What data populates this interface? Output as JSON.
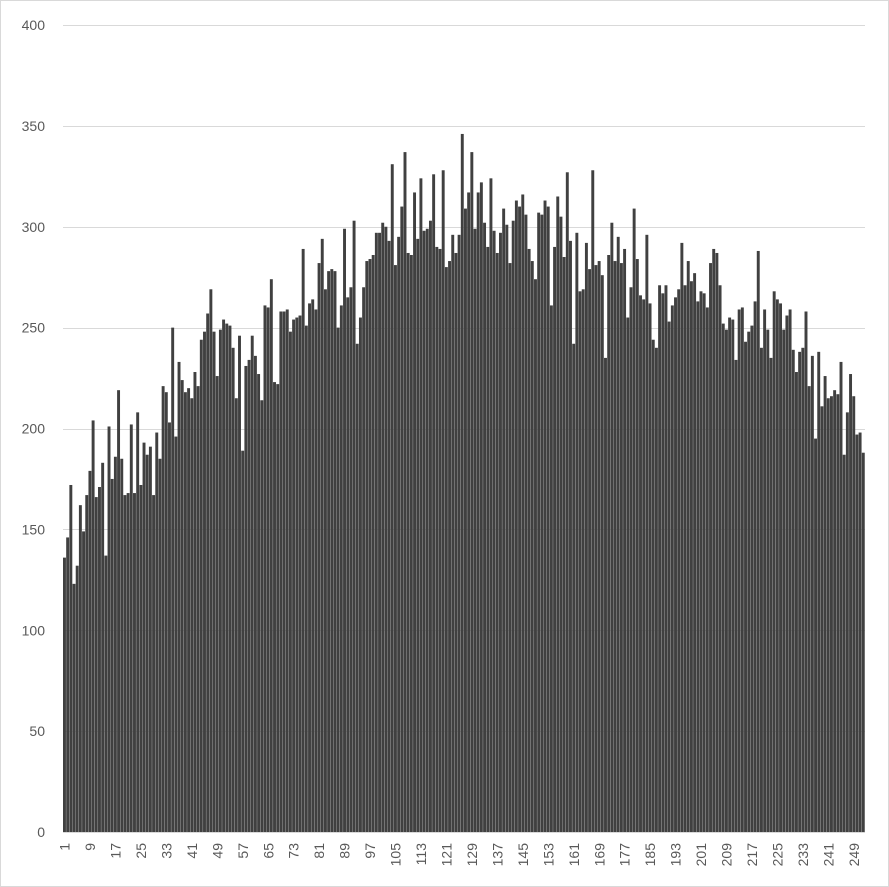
{
  "chart_data": {
    "type": "bar",
    "title": "",
    "xlabel": "",
    "ylabel": "",
    "ylim": [
      0,
      400
    ],
    "y_ticks": [
      0,
      50,
      100,
      150,
      200,
      250,
      300,
      350,
      400
    ],
    "x_tick_labels": [
      "1",
      "9",
      "17",
      "25",
      "33",
      "41",
      "49",
      "57",
      "65",
      "73",
      "81",
      "89",
      "97",
      "105",
      "113",
      "121",
      "129",
      "137",
      "145",
      "153",
      "161",
      "169",
      "177",
      "185",
      "193",
      "201",
      "209",
      "217",
      "225",
      "233",
      "241",
      "249"
    ],
    "grid": true,
    "bar_color": "#404040",
    "categories_start": 1,
    "values": [
      136,
      146,
      172,
      123,
      132,
      162,
      149,
      167,
      179,
      204,
      166,
      171,
      183,
      137,
      201,
      175,
      186,
      219,
      185,
      167,
      168,
      202,
      168,
      208,
      172,
      193,
      187,
      191,
      167,
      198,
      185,
      221,
      218,
      203,
      250,
      196,
      233,
      224,
      218,
      220,
      215,
      228,
      221,
      244,
      248,
      257,
      269,
      248,
      226,
      249,
      254,
      252,
      251,
      240,
      215,
      246,
      189,
      231,
      234,
      246,
      236,
      227,
      214,
      261,
      260,
      274,
      223,
      222,
      258,
      258,
      259,
      248,
      254,
      255,
      256,
      289,
      251,
      262,
      264,
      259,
      282,
      294,
      269,
      278,
      279,
      278,
      250,
      261,
      299,
      265,
      270,
      303,
      242,
      255,
      270,
      283,
      284,
      286,
      297,
      297,
      302,
      300,
      293,
      331,
      281,
      295,
      310,
      337,
      287,
      286,
      317,
      294,
      324,
      298,
      299,
      303,
      326,
      290,
      289,
      328,
      280,
      283,
      296,
      287,
      296,
      346,
      309,
      317,
      337,
      299,
      317,
      322,
      302,
      290,
      324,
      298,
      287,
      297,
      309,
      301,
      282,
      303,
      313,
      310,
      316,
      306,
      289,
      283,
      274,
      307,
      306,
      313,
      310,
      261,
      290,
      315,
      305,
      285,
      327,
      293,
      242,
      297,
      268,
      269,
      292,
      279,
      328,
      281,
      283,
      276,
      235,
      286,
      302,
      283,
      295,
      282,
      289,
      255,
      270,
      309,
      284,
      266,
      264,
      296,
      262,
      244,
      240,
      271,
      267,
      271,
      253,
      261,
      265,
      269,
      292,
      271,
      283,
      273,
      277,
      263,
      268,
      267,
      260,
      282,
      289,
      287,
      271,
      252,
      249,
      255,
      254,
      234,
      259,
      260,
      243,
      248,
      251,
      263,
      288,
      240,
      259,
      249,
      235,
      268,
      264,
      262,
      249,
      256,
      259,
      239,
      228,
      238,
      240,
      258,
      221,
      236,
      195,
      238,
      211,
      226,
      215,
      216,
      219,
      217,
      233,
      187,
      208,
      227,
      216,
      197,
      198,
      188
    ]
  }
}
